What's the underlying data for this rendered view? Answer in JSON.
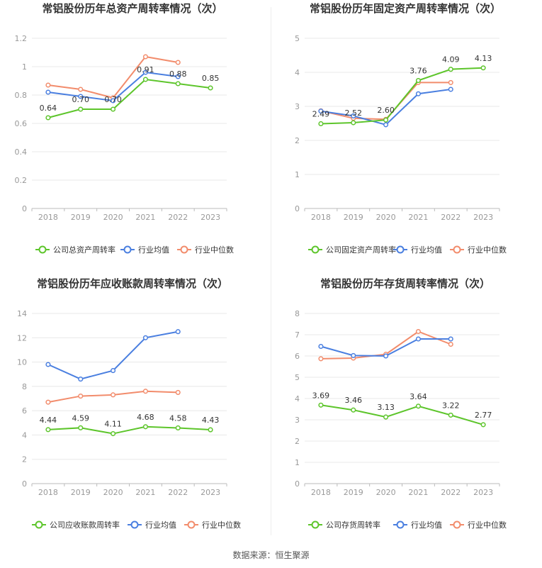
{
  "source": "数据来源：恒生聚源",
  "colors": {
    "company": "#5dc52b",
    "avg": "#4a7fe0",
    "median": "#f28c6c",
    "grid": "#e8e8e8",
    "axis": "#999999",
    "text": "#333333"
  },
  "chart_data": [
    {
      "type": "line",
      "title": "常铝股份历年总资产周转率情况（次）",
      "categories": [
        "2018",
        "2019",
        "2020",
        "2021",
        "2022",
        "2023"
      ],
      "ylim": [
        0,
        1.2
      ],
      "yticks": [
        "0",
        "0.2",
        "0.4",
        "0.6",
        "0.8",
        "1",
        "1.2"
      ],
      "series": [
        {
          "name": "公司总资产周转率",
          "role": "company",
          "values": [
            0.64,
            0.7,
            0.7,
            0.91,
            0.88,
            0.85
          ],
          "labels": [
            "0.64",
            "0.70",
            "0.70",
            "0.91",
            "0.88",
            "0.85"
          ]
        },
        {
          "name": "行业均值",
          "role": "avg",
          "values": [
            0.82,
            0.79,
            0.76,
            0.96,
            0.93,
            null
          ]
        },
        {
          "name": "行业中位数",
          "role": "median",
          "values": [
            0.87,
            0.84,
            0.78,
            1.07,
            1.03,
            null
          ]
        }
      ]
    },
    {
      "type": "line",
      "title": "常铝股份历年固定资产周转率情况（次）",
      "categories": [
        "2018",
        "2019",
        "2020",
        "2021",
        "2022",
        "2023"
      ],
      "ylim": [
        0,
        5
      ],
      "yticks": [
        "0",
        "1",
        "2",
        "3",
        "4",
        "5"
      ],
      "series": [
        {
          "name": "公司固定资产周转率",
          "role": "company",
          "values": [
            2.49,
            2.52,
            2.6,
            3.76,
            4.09,
            4.13
          ],
          "labels": [
            "2.49",
            "2.52",
            "2.60",
            "3.76",
            "4.09",
            "4.13"
          ]
        },
        {
          "name": "行业均值",
          "role": "avg",
          "values": [
            2.86,
            2.72,
            2.46,
            3.37,
            3.5,
            null
          ]
        },
        {
          "name": "行业中位数",
          "role": "median",
          "values": [
            2.87,
            2.65,
            2.62,
            3.7,
            3.7,
            null
          ]
        }
      ]
    },
    {
      "type": "line",
      "title": "常铝股份历年应收账款周转率情况（次）",
      "categories": [
        "2018",
        "2019",
        "2020",
        "2021",
        "2022",
        "2023"
      ],
      "ylim": [
        0,
        14
      ],
      "yticks": [
        "0",
        "2",
        "4",
        "6",
        "8",
        "10",
        "12",
        "14"
      ],
      "series": [
        {
          "name": "公司应收账款周转率",
          "role": "company",
          "values": [
            4.44,
            4.59,
            4.11,
            4.68,
            4.58,
            4.43
          ],
          "labels": [
            "4.44",
            "4.59",
            "4.11",
            "4.68",
            "4.58",
            "4.43"
          ]
        },
        {
          "name": "行业均值",
          "role": "avg",
          "values": [
            9.8,
            8.6,
            9.3,
            12.0,
            12.5,
            null
          ]
        },
        {
          "name": "行业中位数",
          "role": "median",
          "values": [
            6.7,
            7.2,
            7.3,
            7.6,
            7.5,
            null
          ]
        }
      ]
    },
    {
      "type": "line",
      "title": "常铝股份历年存货周转率情况（次）",
      "categories": [
        "2018",
        "2019",
        "2020",
        "2021",
        "2022",
        "2023"
      ],
      "ylim": [
        0,
        8
      ],
      "yticks": [
        "0",
        "1",
        "2",
        "3",
        "4",
        "5",
        "6",
        "7",
        "8"
      ],
      "series": [
        {
          "name": "公司存货周转率",
          "role": "company",
          "values": [
            3.69,
            3.46,
            3.13,
            3.64,
            3.22,
            2.77
          ],
          "labels": [
            "3.69",
            "3.46",
            "3.13",
            "3.64",
            "3.22",
            "2.77"
          ]
        },
        {
          "name": "行业均值",
          "role": "avg",
          "values": [
            6.45,
            6.02,
            6.0,
            6.8,
            6.8,
            null
          ]
        },
        {
          "name": "行业中位数",
          "role": "median",
          "values": [
            5.87,
            5.9,
            6.08,
            7.15,
            6.55,
            null
          ]
        }
      ]
    }
  ]
}
